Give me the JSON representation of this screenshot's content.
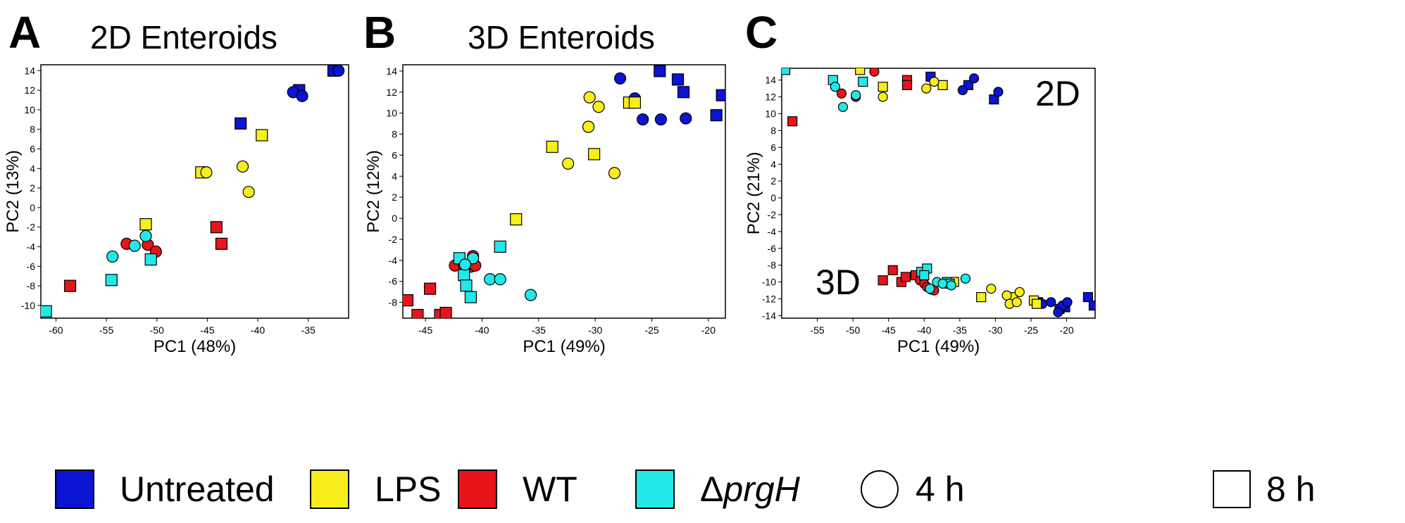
{
  "colors": {
    "untreated": "#0a14d2",
    "lps": "#f7ee1b",
    "wt": "#e8141a",
    "prgh": "#23e8e8"
  },
  "panels": [
    {
      "letter": "A",
      "title": "2D Enteroids",
      "xlabel": "PC1 (48%)",
      "ylabel": "PC2 (13%)"
    },
    {
      "letter": "B",
      "title": "3D Enteroids",
      "xlabel": "PC1 (49%)",
      "ylabel": "PC2 (12%)"
    },
    {
      "letter": "C",
      "title": "",
      "xlabel": "PC1 (49%)",
      "ylabel": "PC2 (21%)",
      "inset_2d": "2D",
      "inset_3d": "3D"
    }
  ],
  "legend": {
    "untreated": "Untreated",
    "lps": "LPS",
    "wt": "WT",
    "prgh_prefix": "Δ",
    "prgh_italic": "prgH",
    "four_h": "4 h",
    "eight_h": "8 h"
  },
  "chart_data": [
    {
      "type": "scatter",
      "title": "2D Enteroids",
      "xlabel": "PC1 (48%)",
      "ylabel": "PC2 (13%)",
      "xlim": [
        -61.5,
        -31
      ],
      "ylim": [
        -11.3,
        14.6
      ],
      "xticks": [
        -60,
        -55,
        -50,
        -45,
        -40,
        -35
      ],
      "yticks": [
        -10,
        -8,
        -6,
        -4,
        -2,
        0,
        2,
        4,
        6,
        8,
        10,
        12,
        14
      ],
      "points": [
        {
          "group": "untreated",
          "time": "8 h",
          "x": -41.7,
          "y": 8.6
        },
        {
          "group": "untreated",
          "time": "8 h",
          "x": -32.5,
          "y": 14.0
        },
        {
          "group": "untreated",
          "time": "8 h",
          "x": -35.9,
          "y": 12.0
        },
        {
          "group": "untreated",
          "time": "4 h",
          "x": -32.0,
          "y": 14.0
        },
        {
          "group": "untreated",
          "time": "4 h",
          "x": -36.5,
          "y": 11.8
        },
        {
          "group": "untreated",
          "time": "4 h",
          "x": -35.6,
          "y": 11.4
        },
        {
          "group": "lps",
          "time": "8 h",
          "x": -39.6,
          "y": 7.4
        },
        {
          "group": "lps",
          "time": "8 h",
          "x": -45.6,
          "y": 3.6
        },
        {
          "group": "lps",
          "time": "8 h",
          "x": -51.1,
          "y": -1.7
        },
        {
          "group": "lps",
          "time": "4 h",
          "x": -45.1,
          "y": 3.6
        },
        {
          "group": "lps",
          "time": "4 h",
          "x": -41.5,
          "y": 4.2
        },
        {
          "group": "lps",
          "time": "4 h",
          "x": -40.9,
          "y": 1.6
        },
        {
          "group": "wt",
          "time": "8 h",
          "x": -44.1,
          "y": -2.0
        },
        {
          "group": "wt",
          "time": "8 h",
          "x": -43.6,
          "y": -3.7
        },
        {
          "group": "wt",
          "time": "8 h",
          "x": -58.6,
          "y": -8.0
        },
        {
          "group": "wt",
          "time": "4 h",
          "x": -53.0,
          "y": -3.7
        },
        {
          "group": "wt",
          "time": "4 h",
          "x": -50.9,
          "y": -3.8
        },
        {
          "group": "wt",
          "time": "4 h",
          "x": -50.1,
          "y": -4.5
        },
        {
          "group": "prgh",
          "time": "8 h",
          "x": -50.6,
          "y": -5.3
        },
        {
          "group": "prgh",
          "time": "8 h",
          "x": -54.5,
          "y": -7.4
        },
        {
          "group": "prgh",
          "time": "8 h",
          "x": -61.0,
          "y": -10.6
        },
        {
          "group": "prgh",
          "time": "4 h",
          "x": -54.4,
          "y": -5.0
        },
        {
          "group": "prgh",
          "time": "4 h",
          "x": -52.2,
          "y": -3.9
        },
        {
          "group": "prgh",
          "time": "4 h",
          "x": -51.1,
          "y": -2.9
        }
      ]
    },
    {
      "type": "scatter",
      "title": "3D Enteroids",
      "xlabel": "PC1 (49%)",
      "ylabel": "PC2 (12%)",
      "xlim": [
        -47,
        -18.5
      ],
      "ylim": [
        -9.5,
        14.6
      ],
      "xticks": [
        -45,
        -40,
        -35,
        -30,
        -25,
        -20
      ],
      "yticks": [
        -8,
        -6,
        -4,
        -2,
        0,
        2,
        4,
        6,
        8,
        10,
        12,
        14
      ],
      "points": [
        {
          "group": "untreated",
          "time": "8 h",
          "x": -24.3,
          "y": 14.0
        },
        {
          "group": "untreated",
          "time": "8 h",
          "x": -22.7,
          "y": 13.2
        },
        {
          "group": "untreated",
          "time": "8 h",
          "x": -22.2,
          "y": 12.0
        },
        {
          "group": "untreated",
          "time": "8 h",
          "x": -18.8,
          "y": 11.7
        },
        {
          "group": "untreated",
          "time": "8 h",
          "x": -19.3,
          "y": 9.8
        },
        {
          "group": "untreated",
          "time": "4 h",
          "x": -27.8,
          "y": 13.3
        },
        {
          "group": "untreated",
          "time": "4 h",
          "x": -26.5,
          "y": 11.4
        },
        {
          "group": "untreated",
          "time": "4 h",
          "x": -25.8,
          "y": 9.4
        },
        {
          "group": "untreated",
          "time": "4 h",
          "x": -24.2,
          "y": 9.4
        },
        {
          "group": "untreated",
          "time": "4 h",
          "x": -22.0,
          "y": 9.5
        },
        {
          "group": "lps",
          "time": "8 h",
          "x": -27.0,
          "y": 11.0
        },
        {
          "group": "lps",
          "time": "8 h",
          "x": -26.5,
          "y": 11.0
        },
        {
          "group": "lps",
          "time": "8 h",
          "x": -33.8,
          "y": 6.8
        },
        {
          "group": "lps",
          "time": "8 h",
          "x": -30.1,
          "y": 6.1
        },
        {
          "group": "lps",
          "time": "8 h",
          "x": -37.0,
          "y": -0.1
        },
        {
          "group": "lps",
          "time": "4 h",
          "x": -30.5,
          "y": 11.5
        },
        {
          "group": "lps",
          "time": "4 h",
          "x": -29.7,
          "y": 10.6
        },
        {
          "group": "lps",
          "time": "4 h",
          "x": -30.6,
          "y": 8.7
        },
        {
          "group": "lps",
          "time": "4 h",
          "x": -32.4,
          "y": 5.2
        },
        {
          "group": "lps",
          "time": "4 h",
          "x": -28.3,
          "y": 4.3
        },
        {
          "group": "wt",
          "time": "8 h",
          "x": -46.6,
          "y": -7.8
        },
        {
          "group": "wt",
          "time": "8 h",
          "x": -44.6,
          "y": -6.7
        },
        {
          "group": "wt",
          "time": "8 h",
          "x": -45.7,
          "y": -9.2
        },
        {
          "group": "wt",
          "time": "8 h",
          "x": -43.7,
          "y": -9.2
        },
        {
          "group": "wt",
          "time": "8 h",
          "x": -43.2,
          "y": -9.0
        },
        {
          "group": "wt",
          "time": "4 h",
          "x": -42.4,
          "y": -4.5
        },
        {
          "group": "wt",
          "time": "4 h",
          "x": -41.6,
          "y": -4.5
        },
        {
          "group": "wt",
          "time": "4 h",
          "x": -41.0,
          "y": -4.6
        },
        {
          "group": "wt",
          "time": "4 h",
          "x": -40.8,
          "y": -3.6
        },
        {
          "group": "wt",
          "time": "4 h",
          "x": -40.6,
          "y": -4.5
        },
        {
          "group": "prgh",
          "time": "8 h",
          "x": -38.4,
          "y": -2.7
        },
        {
          "group": "prgh",
          "time": "8 h",
          "x": -42.0,
          "y": -3.8
        },
        {
          "group": "prgh",
          "time": "8 h",
          "x": -41.6,
          "y": -5.4
        },
        {
          "group": "prgh",
          "time": "8 h",
          "x": -41.4,
          "y": -6.4
        },
        {
          "group": "prgh",
          "time": "8 h",
          "x": -41.0,
          "y": -7.5
        },
        {
          "group": "prgh",
          "time": "4 h",
          "x": -40.8,
          "y": -3.8
        },
        {
          "group": "prgh",
          "time": "4 h",
          "x": -39.3,
          "y": -5.8
        },
        {
          "group": "prgh",
          "time": "4 h",
          "x": -38.4,
          "y": -5.8
        },
        {
          "group": "prgh",
          "time": "4 h",
          "x": -35.7,
          "y": -7.3
        },
        {
          "group": "prgh",
          "time": "4 h",
          "x": -41.5,
          "y": -4.4
        }
      ]
    },
    {
      "type": "scatter",
      "title": "",
      "xlabel": "PC1 (49%)",
      "ylabel": "PC2 (21%)",
      "xlim": [
        -60,
        -16
      ],
      "ylim": [
        -14.3,
        15.4
      ],
      "xticks": [
        -55,
        -50,
        -45,
        -40,
        -35,
        -30,
        -25,
        -20
      ],
      "yticks": [
        -14,
        -12,
        -10,
        -8,
        -6,
        -4,
        -2,
        0,
        2,
        4,
        6,
        8,
        10,
        12,
        14
      ],
      "annotations": [
        "2D",
        "3D"
      ],
      "points": [
        {
          "group": "untreated",
          "time": "8 h",
          "x": -39.1,
          "y": 14.4
        },
        {
          "group": "untreated",
          "time": "8 h",
          "x": -33.8,
          "y": 13.4
        },
        {
          "group": "untreated",
          "time": "8 h",
          "x": -30.2,
          "y": 11.7
        },
        {
          "group": "untreated",
          "time": "4 h",
          "x": -33.0,
          "y": 14.2
        },
        {
          "group": "untreated",
          "time": "4 h",
          "x": -34.6,
          "y": 12.8
        },
        {
          "group": "untreated",
          "time": "4 h",
          "x": -29.6,
          "y": 12.6
        },
        {
          "group": "lps",
          "time": "8 h",
          "x": -49.0,
          "y": 15.2
        },
        {
          "group": "lps",
          "time": "8 h",
          "x": -45.8,
          "y": 13.2
        },
        {
          "group": "lps",
          "time": "8 h",
          "x": -37.4,
          "y": 13.4
        },
        {
          "group": "lps",
          "time": "4 h",
          "x": -45.8,
          "y": 12.0
        },
        {
          "group": "lps",
          "time": "4 h",
          "x": -39.7,
          "y": 13.0
        },
        {
          "group": "lps",
          "time": "4 h",
          "x": -38.6,
          "y": 13.8
        },
        {
          "group": "wt",
          "time": "8 h",
          "x": -42.4,
          "y": 14.0
        },
        {
          "group": "wt",
          "time": "8 h",
          "x": -42.4,
          "y": 13.4
        },
        {
          "group": "wt",
          "time": "8 h",
          "x": -58.5,
          "y": 9.1
        },
        {
          "group": "wt",
          "time": "4 h",
          "x": -47.0,
          "y": 15.0
        },
        {
          "group": "wt",
          "time": "4 h",
          "x": -51.6,
          "y": 12.4
        },
        {
          "group": "wt",
          "time": "4 h",
          "x": -49.6,
          "y": 12.0
        },
        {
          "group": "prgh",
          "time": "8 h",
          "x": -59.5,
          "y": 15.2
        },
        {
          "group": "prgh",
          "time": "8 h",
          "x": -52.8,
          "y": 14.0
        },
        {
          "group": "prgh",
          "time": "8 h",
          "x": -48.6,
          "y": 13.8
        },
        {
          "group": "prgh",
          "time": "4 h",
          "x": -52.5,
          "y": 13.2
        },
        {
          "group": "prgh",
          "time": "4 h",
          "x": -49.6,
          "y": 12.2
        },
        {
          "group": "prgh",
          "time": "4 h",
          "x": -51.4,
          "y": 10.8
        },
        {
          "group": "untreated",
          "time": "8 h",
          "x": -17.0,
          "y": -11.8
        },
        {
          "group": "untreated",
          "time": "8 h",
          "x": -16.2,
          "y": -12.8
        },
        {
          "group": "untreated",
          "time": "8 h",
          "x": -20.2,
          "y": -13.0
        },
        {
          "group": "untreated",
          "time": "8 h",
          "x": -21.0,
          "y": -13.2
        },
        {
          "group": "untreated",
          "time": "8 h",
          "x": -24.0,
          "y": -12.4
        },
        {
          "group": "untreated",
          "time": "4 h",
          "x": -23.4,
          "y": -12.6
        },
        {
          "group": "untreated",
          "time": "4 h",
          "x": -22.2,
          "y": -12.4
        },
        {
          "group": "untreated",
          "time": "4 h",
          "x": -20.6,
          "y": -12.8
        },
        {
          "group": "untreated",
          "time": "4 h",
          "x": -19.9,
          "y": -12.4
        },
        {
          "group": "untreated",
          "time": "4 h",
          "x": -21.2,
          "y": -13.6
        },
        {
          "group": "lps",
          "time": "8 h",
          "x": -32.0,
          "y": -11.8
        },
        {
          "group": "lps",
          "time": "8 h",
          "x": -35.8,
          "y": -10.0
        },
        {
          "group": "lps",
          "time": "8 h",
          "x": -27.6,
          "y": -11.8
        },
        {
          "group": "lps",
          "time": "8 h",
          "x": -24.6,
          "y": -12.2
        },
        {
          "group": "lps",
          "time": "8 h",
          "x": -24.2,
          "y": -12.6
        },
        {
          "group": "lps",
          "time": "4 h",
          "x": -30.6,
          "y": -10.8
        },
        {
          "group": "lps",
          "time": "4 h",
          "x": -28.4,
          "y": -11.6
        },
        {
          "group": "lps",
          "time": "4 h",
          "x": -26.6,
          "y": -11.2
        },
        {
          "group": "lps",
          "time": "4 h",
          "x": -28.0,
          "y": -12.6
        },
        {
          "group": "lps",
          "time": "4 h",
          "x": -27.0,
          "y": -12.4
        },
        {
          "group": "wt",
          "time": "8 h",
          "x": -44.4,
          "y": -8.6
        },
        {
          "group": "wt",
          "time": "8 h",
          "x": -45.8,
          "y": -9.8
        },
        {
          "group": "wt",
          "time": "8 h",
          "x": -43.2,
          "y": -10.0
        },
        {
          "group": "wt",
          "time": "8 h",
          "x": -42.6,
          "y": -9.4
        },
        {
          "group": "wt",
          "time": "8 h",
          "x": -41.2,
          "y": -9.2
        },
        {
          "group": "wt",
          "time": "4 h",
          "x": -40.6,
          "y": -9.8
        },
        {
          "group": "wt",
          "time": "4 h",
          "x": -40.0,
          "y": -10.2
        },
        {
          "group": "wt",
          "time": "4 h",
          "x": -39.6,
          "y": -10.6
        },
        {
          "group": "wt",
          "time": "4 h",
          "x": -39.0,
          "y": -10.9
        },
        {
          "group": "wt",
          "time": "4 h",
          "x": -38.6,
          "y": -11.0
        },
        {
          "group": "prgh",
          "time": "8 h",
          "x": -40.4,
          "y": -8.8
        },
        {
          "group": "prgh",
          "time": "8 h",
          "x": -39.6,
          "y": -8.4
        },
        {
          "group": "prgh",
          "time": "8 h",
          "x": -36.8,
          "y": -10.0
        },
        {
          "group": "prgh",
          "time": "8 h",
          "x": -36.4,
          "y": -10.2
        },
        {
          "group": "prgh",
          "time": "8 h",
          "x": -40.0,
          "y": -9.2
        },
        {
          "group": "prgh",
          "time": "4 h",
          "x": -38.2,
          "y": -10.0
        },
        {
          "group": "prgh",
          "time": "4 h",
          "x": -37.4,
          "y": -10.2
        },
        {
          "group": "prgh",
          "time": "4 h",
          "x": -34.2,
          "y": -9.6
        },
        {
          "group": "prgh",
          "time": "4 h",
          "x": -39.2,
          "y": -10.8
        },
        {
          "group": "prgh",
          "time": "4 h",
          "x": -36.2,
          "y": -10.4
        }
      ]
    }
  ]
}
